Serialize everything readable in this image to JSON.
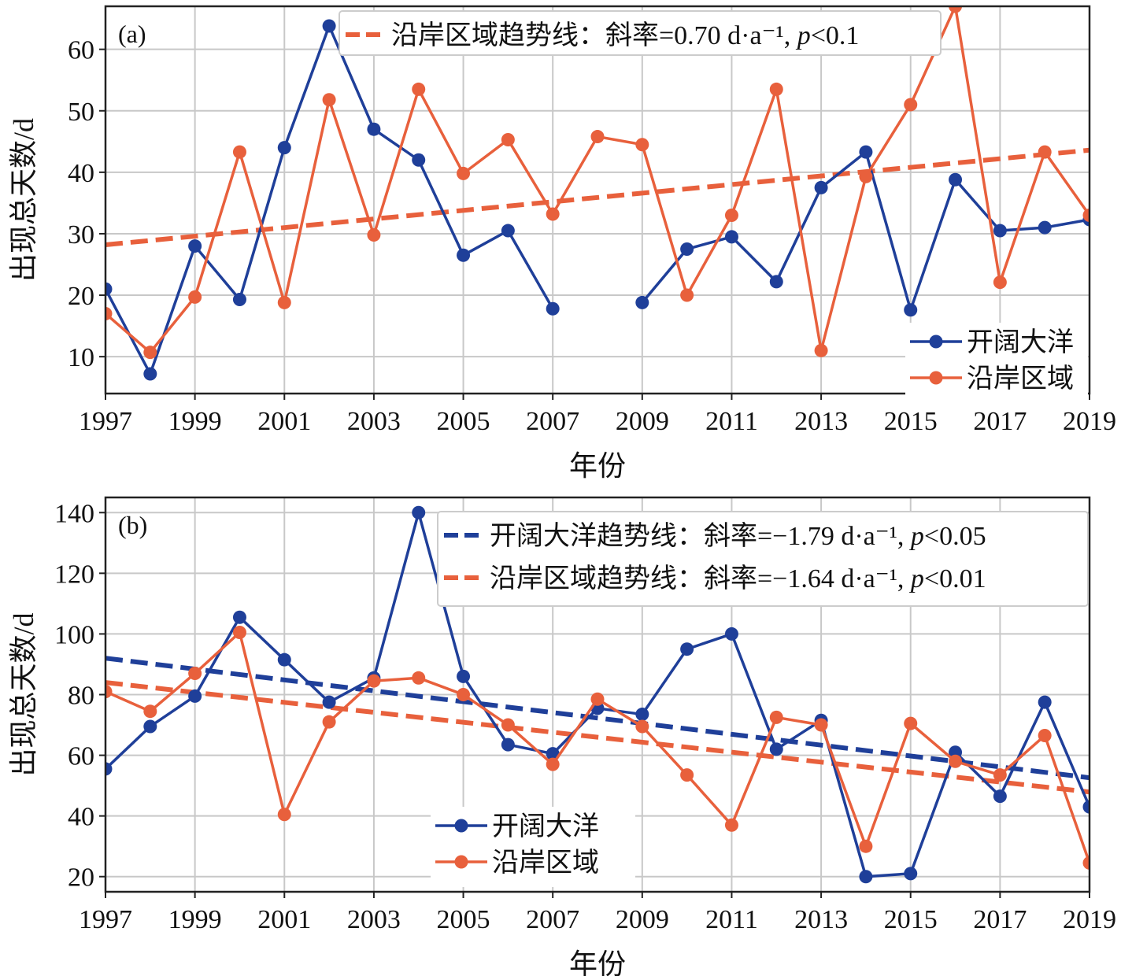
{
  "chart_data": [
    {
      "type": "line",
      "panel_label": "(a)",
      "xlabel": "年份",
      "ylabel": "出现总天数/d",
      "xlim": [
        1997,
        2019
      ],
      "ylim": [
        4,
        67
      ],
      "x_ticks": [
        1997,
        1999,
        2001,
        2003,
        2005,
        2007,
        2009,
        2011,
        2013,
        2015,
        2017,
        2019
      ],
      "y_ticks": [
        10,
        20,
        30,
        40,
        50,
        60
      ],
      "grid": true,
      "x": [
        1997,
        1998,
        1999,
        2000,
        2001,
        2002,
        2003,
        2004,
        2005,
        2006,
        2007,
        2008,
        2009,
        2010,
        2011,
        2012,
        2013,
        2014,
        2015,
        2016,
        2017,
        2018,
        2019
      ],
      "series": [
        {
          "name": "开阔大洋",
          "color": "#1f3f99",
          "values": [
            21,
            7.2,
            28,
            19.3,
            44,
            63.8,
            47,
            42,
            26.5,
            30.5,
            17.8,
            null,
            18.8,
            27.5,
            29.5,
            22.2,
            37.5,
            43.3,
            17.6,
            38.8,
            30.5,
            31,
            32.3
          ]
        },
        {
          "name": "沿岸区域",
          "color": "#e8603c",
          "values": [
            17,
            10.7,
            19.7,
            43.3,
            18.8,
            51.8,
            29.8,
            53.5,
            39.8,
            45.3,
            33.2,
            45.8,
            44.5,
            20,
            33,
            53.5,
            11,
            39.3,
            51,
            67,
            22.1,
            43.3,
            33
          ]
        }
      ],
      "trend_lines": [
        {
          "series": "沿岸区域",
          "label": "沿岸区域趋势线：斜率=0.70 d·a⁻¹, p<0.1",
          "color": "#e8603c",
          "y_start": 28.2,
          "y_end": 43.6
        }
      ],
      "legend_trend_position": "top-center",
      "legend_series_position": "lower-right"
    },
    {
      "type": "line",
      "panel_label": "(b)",
      "xlabel": "年份",
      "ylabel": "出现总天数/d",
      "xlim": [
        1997,
        2019
      ],
      "ylim": [
        15,
        145
      ],
      "x_ticks": [
        1997,
        1999,
        2001,
        2003,
        2005,
        2007,
        2009,
        2011,
        2013,
        2015,
        2017,
        2019
      ],
      "y_ticks": [
        20,
        40,
        60,
        80,
        100,
        120,
        140
      ],
      "grid": true,
      "x": [
        1997,
        1998,
        1999,
        2000,
        2001,
        2002,
        2003,
        2004,
        2005,
        2006,
        2007,
        2008,
        2009,
        2010,
        2011,
        2012,
        2013,
        2014,
        2015,
        2016,
        2017,
        2018,
        2019
      ],
      "series": [
        {
          "name": "开阔大洋",
          "color": "#1f3f99",
          "values": [
            55.5,
            69.5,
            79.5,
            105.5,
            91.5,
            77.5,
            85.5,
            140,
            86,
            63.5,
            60.5,
            75.5,
            73.5,
            95,
            100,
            62,
            71.5,
            20,
            21,
            61,
            46.5,
            77.5,
            43
          ]
        },
        {
          "name": "沿岸区域",
          "color": "#e8603c",
          "values": [
            81,
            74.5,
            87,
            100.5,
            40.5,
            71,
            84.5,
            85.5,
            80,
            70,
            57,
            78.5,
            69.5,
            53.5,
            37,
            72.5,
            70,
            30,
            70.5,
            58,
            53.5,
            66.5,
            24.5
          ]
        }
      ],
      "trend_lines": [
        {
          "series": "开阔大洋",
          "label": "开阔大洋趋势线：斜率=−1.79 d·a⁻¹, p<0.05",
          "color": "#1f3f99",
          "y_start": 92,
          "y_end": 52.6
        },
        {
          "series": "沿岸区域",
          "label": "沿岸区域趋势线：斜率=−1.64 d·a⁻¹, p<0.01",
          "color": "#e8603c",
          "y_start": 84,
          "y_end": 47.9
        }
      ],
      "legend_trend_position": "top-right",
      "legend_series_position": "lower-center"
    }
  ]
}
